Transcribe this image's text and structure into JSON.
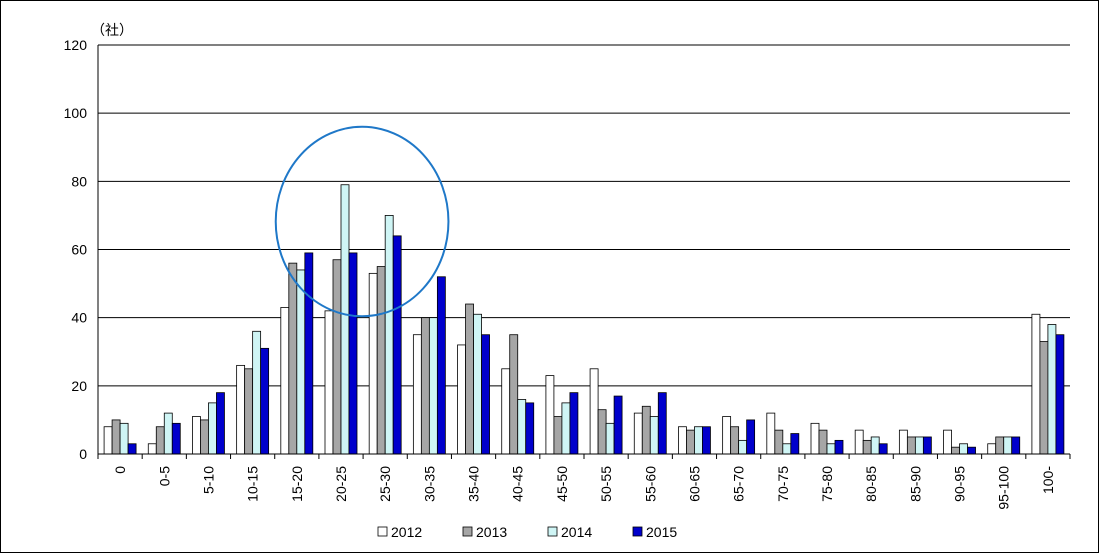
{
  "chart_data": {
    "type": "bar",
    "unit": "（社）",
    "categories": [
      "0",
      "0-5",
      "5-10",
      "10-15",
      "15-20",
      "20-25",
      "25-30",
      "30-35",
      "35-40",
      "40-45",
      "45-50",
      "50-55",
      "55-60",
      "60-65",
      "65-70",
      "70-75",
      "75-80",
      "80-85",
      "85-90",
      "90-95",
      "95-100",
      "100-"
    ],
    "series": [
      {
        "name": "2012",
        "color": "#ffffff",
        "values": [
          8,
          3,
          11,
          26,
          43,
          42,
          53,
          35,
          32,
          25,
          23,
          25,
          12,
          8,
          11,
          12,
          9,
          7,
          7,
          7,
          3,
          41
        ]
      },
      {
        "name": "2013",
        "color": "#a6a6a6",
        "values": [
          10,
          8,
          10,
          25,
          56,
          57,
          55,
          40,
          44,
          35,
          11,
          13,
          14,
          7,
          8,
          7,
          7,
          4,
          5,
          2,
          5,
          33
        ]
      },
      {
        "name": "2014",
        "color": "#cff5f5",
        "values": [
          9,
          12,
          15,
          36,
          54,
          79,
          70,
          40,
          41,
          16,
          15,
          9,
          11,
          8,
          4,
          3,
          3,
          5,
          5,
          3,
          5,
          38
        ]
      },
      {
        "name": "2015",
        "color": "#0000cc",
        "values": [
          3,
          9,
          18,
          31,
          59,
          59,
          64,
          52,
          35,
          15,
          18,
          17,
          18,
          8,
          10,
          6,
          4,
          3,
          5,
          2,
          5,
          35
        ]
      }
    ],
    "ylim": [
      0,
      120
    ],
    "yticks": [
      0,
      20,
      40,
      60,
      80,
      100,
      120
    ],
    "grid": true,
    "legend_position": "bottom",
    "annotation": "ellipse highlighting 15-20 to 30-35",
    "annotation_color": "#1f78c8"
  }
}
